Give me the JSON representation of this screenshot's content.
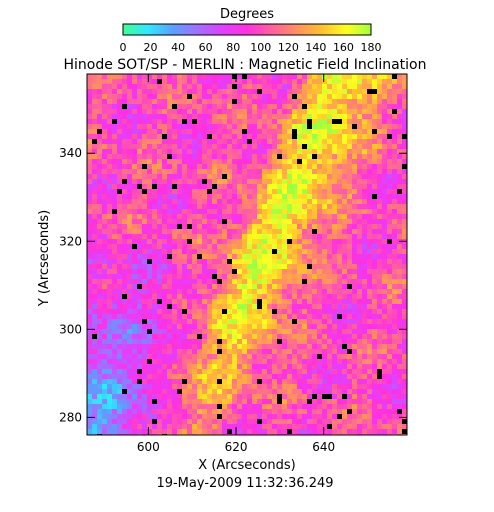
{
  "chart_data": {
    "type": "heatmap",
    "title": "Hinode SOT/SP - MERLIN : Magnetic Field Inclination",
    "subtitle": "19-May-2009 11:32:36.249",
    "xlabel": "X (Arcseconds)",
    "ylabel": "Y (Arcseconds)",
    "xlim": [
      586,
      659
    ],
    "ylim": [
      276,
      358
    ],
    "x_ticks": [
      600,
      620,
      640
    ],
    "y_ticks": [
      280,
      300,
      320,
      340
    ],
    "colorbar": {
      "label": "Degrees",
      "min": 0,
      "max": 180,
      "ticks": [
        0,
        20,
        40,
        60,
        80,
        100,
        120,
        140,
        160,
        180
      ],
      "colors": [
        "#40ff90",
        "#30e8ff",
        "#5aa0ff",
        "#a070ff",
        "#e040ff",
        "#ff30e0",
        "#ff60a0",
        "#ff9060",
        "#ffc030",
        "#ffff20",
        "#a0ff40"
      ]
    },
    "grid": false,
    "legend": "none"
  }
}
